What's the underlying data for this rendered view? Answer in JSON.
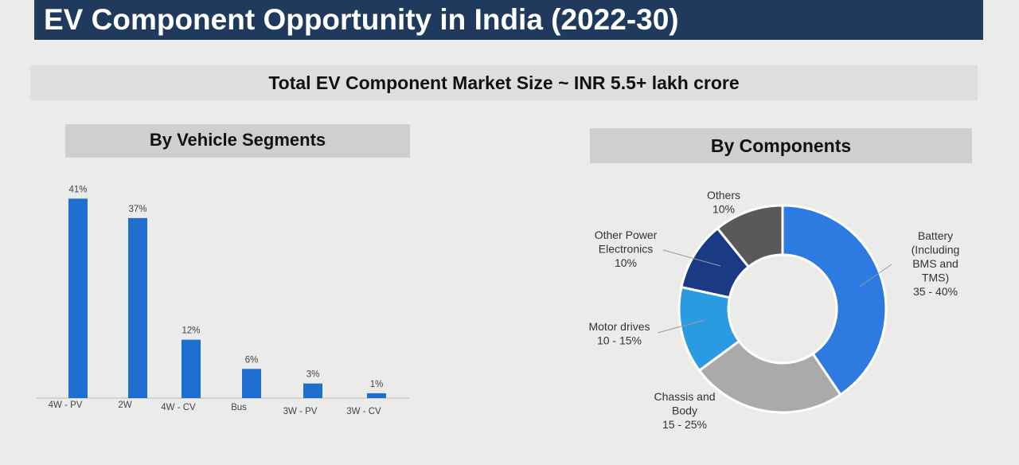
{
  "page": {
    "title": "EV Component Opportunity in India (2022-30)",
    "total_market": "Total EV Component Market Size ~ INR 5.5+ lakh crore"
  },
  "chart_data": [
    {
      "type": "bar",
      "title": "By Vehicle Segments",
      "categories": [
        "4W - PV",
        "2W",
        "4W - CV",
        "Bus",
        "3W - PV",
        "3W - CV"
      ],
      "values": [
        41,
        37,
        12,
        6,
        3,
        1
      ],
      "data_labels": [
        "41%",
        "37%",
        "12%",
        "6%",
        "3%",
        "1%"
      ],
      "unit": "%",
      "ylim": [
        0,
        45
      ],
      "grid": false,
      "legend": "none",
      "colors": {
        "bar": "#1f6fd1",
        "axis": "#bbbbbb"
      }
    },
    {
      "type": "pie",
      "variant": "donut",
      "title": "By Components",
      "slices": [
        {
          "label_lines": [
            "Battery",
            "(Including",
            "BMS and",
            "TMS)",
            "35 - 40%"
          ],
          "value": 37.5,
          "color": "#2d7ae0"
        },
        {
          "label_lines": [
            "Chassis and",
            "Body",
            "15 - 25%"
          ],
          "value": 22.5,
          "color": "#aaaaaa"
        },
        {
          "label_lines": [
            "Motor drives",
            "10 - 15%"
          ],
          "value": 12.5,
          "color": "#2a9be0"
        },
        {
          "label_lines": [
            "Other Power",
            "Electronics",
            "10%"
          ],
          "value": 10,
          "color": "#1a3a86"
        },
        {
          "label_lines": [
            "Others",
            "10%"
          ],
          "value": 10,
          "color": "#595959"
        }
      ],
      "legend": "none"
    }
  ]
}
